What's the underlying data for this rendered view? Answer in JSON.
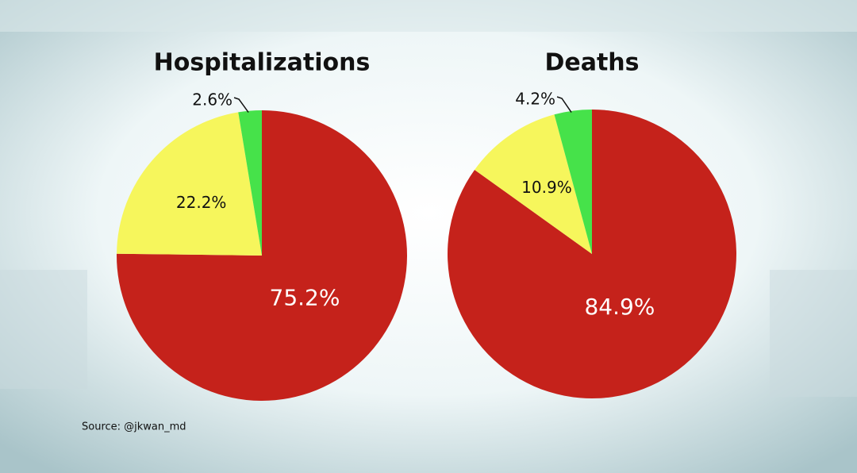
{
  "chart_data": [
    {
      "type": "pie",
      "title": "Hospitalizations",
      "values": [
        75.2,
        22.2,
        2.6
      ],
      "value_labels": [
        "75.2%",
        "22.2%",
        "2.6%"
      ],
      "colors": [
        "#c5221b",
        "#f6f65c",
        "#46e24a"
      ]
    },
    {
      "type": "pie",
      "title": "Deaths",
      "values": [
        84.9,
        10.9,
        4.2
      ],
      "value_labels": [
        "84.9%",
        "10.9%",
        "4.2%"
      ],
      "colors": [
        "#c5221b",
        "#f6f65c",
        "#46e24a"
      ]
    }
  ],
  "source": "Source: @jkwan_md"
}
